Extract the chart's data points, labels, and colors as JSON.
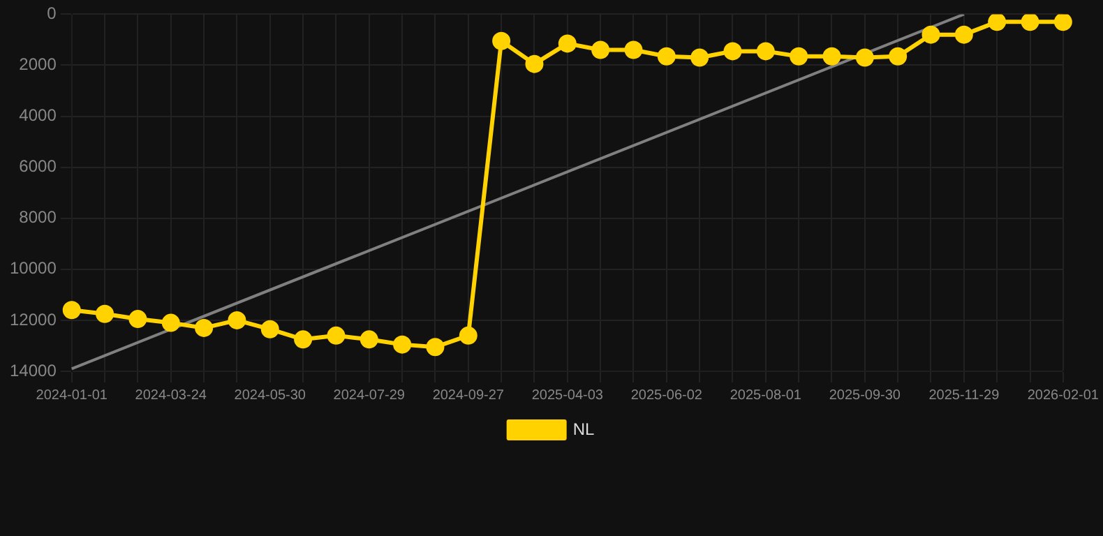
{
  "chart_data": {
    "type": "line",
    "categories": [
      "2024-01-01",
      null,
      null,
      "2024-03-24",
      null,
      null,
      "2024-05-30",
      null,
      null,
      "2024-07-29",
      null,
      null,
      "2024-09-27",
      null,
      null,
      "2025-04-03",
      null,
      null,
      "2025-06-02",
      null,
      null,
      "2025-08-01",
      null,
      null,
      "2025-09-30",
      null,
      null,
      "2025-11-29",
      null,
      null,
      "2026-02-01"
    ],
    "series": [
      {
        "name": "NL",
        "color": "#ffd200",
        "marker": "circle",
        "values": [
          11600,
          11750,
          11950,
          12100,
          12300,
          12000,
          12350,
          12750,
          12600,
          12750,
          12950,
          13050,
          12600,
          1050,
          1950,
          1150,
          1400,
          1400,
          1650,
          1700,
          1450,
          1450,
          1650,
          1650,
          1700,
          1650,
          800,
          800,
          300,
          300,
          300
        ]
      },
      {
        "type": "line",
        "color": "#808080",
        "marker": "none",
        "values": [
          13900,
          null,
          null,
          null,
          null,
          null,
          null,
          null,
          null,
          null,
          null,
          null,
          null,
          null,
          null,
          null,
          null,
          null,
          null,
          null,
          null,
          null,
          null,
          null,
          null,
          null,
          null,
          0,
          null,
          null,
          null
        ]
      }
    ],
    "ylim": [
      14000,
      0
    ],
    "yticks": [
      0,
      2000,
      4000,
      6000,
      8000,
      10000,
      12000,
      14000
    ],
    "grid": true,
    "legend": "bottom"
  }
}
